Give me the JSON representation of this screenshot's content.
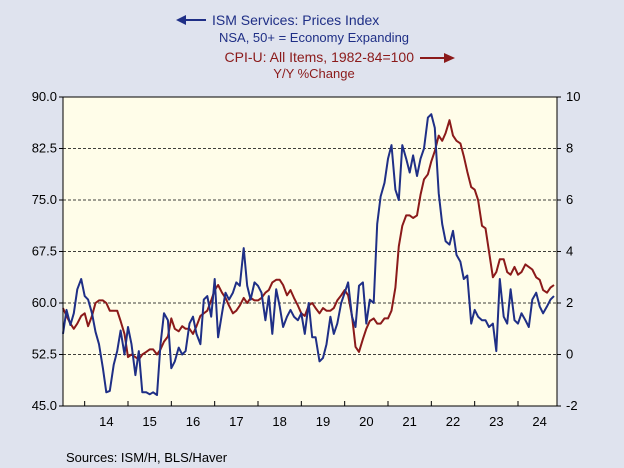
{
  "chart_data": {
    "type": "line",
    "source": "Sources:  ISM/H, BLS/Haver",
    "grid": true,
    "x_ticks": [
      "14",
      "15",
      "16",
      "17",
      "18",
      "19",
      "20",
      "21",
      "22",
      "23",
      "24"
    ],
    "x_range": [
      2013.5,
      2024.9
    ],
    "left_axis": {
      "range": [
        45.0,
        90.0
      ],
      "ticks": [
        90.0,
        82.5,
        75.0,
        67.5,
        60.0,
        52.5,
        45.0
      ],
      "tick_labels": [
        "90.0",
        "82.5",
        "75.0",
        "67.5",
        "60.0",
        "52.5",
        "45.0"
      ]
    },
    "right_axis": {
      "range": [
        -2,
        10
      ],
      "ticks": [
        10,
        8,
        6,
        4,
        2,
        0,
        -2
      ],
      "tick_labels": [
        "10",
        "8",
        "6",
        "4",
        "2",
        "0",
        "-2"
      ]
    },
    "series": [
      {
        "name": "ISM Services: Prices Index",
        "subtitle": "NSA, 50+ = Economy Expanding",
        "axis": "left",
        "color": "#1f2f86",
        "legend_arrow": "left",
        "x": [
          2013.5,
          2013.58,
          2013.67,
          2013.75,
          2013.83,
          2013.92,
          2014.0,
          2014.08,
          2014.17,
          2014.25,
          2014.33,
          2014.42,
          2014.5,
          2014.58,
          2014.67,
          2014.75,
          2014.83,
          2014.92,
          2015.0,
          2015.08,
          2015.17,
          2015.25,
          2015.33,
          2015.42,
          2015.5,
          2015.58,
          2015.67,
          2015.75,
          2015.83,
          2015.92,
          2016.0,
          2016.08,
          2016.17,
          2016.25,
          2016.33,
          2016.42,
          2016.5,
          2016.58,
          2016.67,
          2016.75,
          2016.83,
          2016.92,
          2017.0,
          2017.08,
          2017.17,
          2017.25,
          2017.33,
          2017.42,
          2017.5,
          2017.58,
          2017.67,
          2017.75,
          2017.83,
          2017.92,
          2018.0,
          2018.08,
          2018.17,
          2018.25,
          2018.33,
          2018.42,
          2018.5,
          2018.58,
          2018.67,
          2018.75,
          2018.83,
          2018.92,
          2019.0,
          2019.08,
          2019.17,
          2019.25,
          2019.33,
          2019.42,
          2019.5,
          2019.58,
          2019.67,
          2019.75,
          2019.83,
          2019.92,
          2020.0,
          2020.08,
          2020.17,
          2020.25,
          2020.33,
          2020.42,
          2020.5,
          2020.58,
          2020.67,
          2020.75,
          2020.83,
          2020.92,
          2021.0,
          2021.08,
          2021.17,
          2021.25,
          2021.33,
          2021.42,
          2021.5,
          2021.58,
          2021.67,
          2021.75,
          2021.83,
          2021.92,
          2022.0,
          2022.08,
          2022.17,
          2022.25,
          2022.33,
          2022.42,
          2022.5,
          2022.58,
          2022.67,
          2022.75,
          2022.83,
          2022.92,
          2023.0,
          2023.08,
          2023.17,
          2023.25,
          2023.33,
          2023.42,
          2023.5,
          2023.58,
          2023.67,
          2023.75,
          2023.83,
          2023.92,
          2024.0,
          2024.08,
          2024.17,
          2024.25,
          2024.33,
          2024.42,
          2024.5,
          2024.58,
          2024.67,
          2024.75,
          2024.83
        ],
        "values": [
          55.5,
          59.0,
          56.8,
          58.5,
          62.0,
          63.5,
          61.0,
          60.5,
          58.5,
          55.8,
          54.0,
          50.5,
          47.0,
          47.2,
          51.0,
          53.0,
          56.0,
          52.5,
          56.5,
          54.0,
          49.5,
          53.0,
          47.0,
          47.0,
          46.7,
          47.0,
          46.6,
          54.0,
          58.5,
          57.5,
          50.5,
          51.5,
          53.5,
          52.5,
          53.0,
          57.0,
          58.0,
          55.5,
          54.0,
          60.5,
          61.0,
          58.0,
          63.5,
          55.0,
          58.5,
          61.5,
          60.5,
          61.5,
          63.0,
          62.5,
          68.0,
          62.5,
          60.5,
          63.0,
          62.5,
          61.5,
          57.5,
          61.0,
          55.5,
          62.0,
          59.5,
          56.5,
          58.0,
          59.0,
          58.0,
          57.5,
          58.5,
          55.5,
          60.0,
          55.0,
          55.0,
          51.5,
          52.0,
          54.0,
          58.0,
          55.5,
          57.0,
          60.0,
          61.5,
          63.0,
          58.0,
          56.5,
          62.5,
          63.0,
          57.0,
          60.5,
          60.0,
          71.5,
          75.5,
          77.5,
          81.0,
          83.0,
          76.5,
          75.0,
          83.0,
          81.0,
          79.0,
          81.5,
          78.5,
          81.0,
          82.5,
          87.0,
          87.5,
          85.5,
          76.0,
          71.5,
          69.0,
          68.5,
          70.5,
          67.0,
          66.0,
          63.5,
          64.0,
          57.0,
          59.0,
          58.0,
          57.5,
          57.5,
          56.5,
          57.0,
          53.0,
          63.5,
          58.0,
          57.0,
          62.0,
          57.5,
          57.0,
          58.5,
          57.5,
          56.5,
          60.5,
          61.5,
          59.5,
          58.5,
          59.5,
          60.5,
          61.0
        ],
        "note": "monthly estimates read from chart"
      },
      {
        "name": "CPI-U: All Items, 1982-84=100",
        "subtitle": "Y/Y %Change",
        "axis": "right",
        "color": "#8b1a1a",
        "legend_arrow": "right",
        "x": [
          2013.5,
          2013.58,
          2013.67,
          2013.75,
          2013.83,
          2013.92,
          2014.0,
          2014.08,
          2014.17,
          2014.25,
          2014.33,
          2014.42,
          2014.5,
          2014.58,
          2014.67,
          2014.75,
          2014.83,
          2014.92,
          2015.0,
          2015.08,
          2015.17,
          2015.25,
          2015.33,
          2015.42,
          2015.5,
          2015.58,
          2015.67,
          2015.75,
          2015.83,
          2015.92,
          2016.0,
          2016.08,
          2016.17,
          2016.25,
          2016.33,
          2016.42,
          2016.5,
          2016.58,
          2016.67,
          2016.75,
          2016.83,
          2016.92,
          2017.0,
          2017.08,
          2017.17,
          2017.25,
          2017.33,
          2017.42,
          2017.5,
          2017.58,
          2017.67,
          2017.75,
          2017.83,
          2017.92,
          2018.0,
          2018.08,
          2018.17,
          2018.25,
          2018.33,
          2018.42,
          2018.5,
          2018.58,
          2018.67,
          2018.75,
          2018.83,
          2018.92,
          2019.0,
          2019.08,
          2019.17,
          2019.25,
          2019.33,
          2019.42,
          2019.5,
          2019.58,
          2019.67,
          2019.75,
          2019.83,
          2019.92,
          2020.0,
          2020.08,
          2020.17,
          2020.25,
          2020.33,
          2020.42,
          2020.5,
          2020.58,
          2020.67,
          2020.75,
          2020.83,
          2020.92,
          2021.0,
          2021.08,
          2021.17,
          2021.25,
          2021.33,
          2021.42,
          2021.5,
          2021.58,
          2021.67,
          2021.75,
          2021.83,
          2021.92,
          2022.0,
          2022.08,
          2022.17,
          2022.25,
          2022.33,
          2022.42,
          2022.5,
          2022.58,
          2022.67,
          2022.75,
          2022.83,
          2022.92,
          2023.0,
          2023.08,
          2023.17,
          2023.25,
          2023.33,
          2023.42,
          2023.5,
          2023.58,
          2023.67,
          2023.75,
          2023.83,
          2023.92,
          2024.0,
          2024.08,
          2024.17,
          2024.25,
          2024.33,
          2024.42,
          2024.5,
          2024.58,
          2024.67,
          2024.75,
          2024.83
        ],
        "values": [
          1.8,
          1.5,
          1.2,
          1.0,
          1.2,
          1.5,
          1.6,
          1.1,
          1.5,
          2.0,
          2.1,
          2.1,
          2.0,
          1.7,
          1.7,
          1.7,
          1.3,
          0.8,
          -0.1,
          0.0,
          -0.1,
          -0.2,
          0.0,
          0.1,
          0.2,
          0.2,
          0.0,
          0.2,
          0.5,
          0.7,
          1.4,
          1.0,
          0.9,
          1.1,
          1.0,
          1.0,
          0.8,
          1.1,
          1.5,
          1.6,
          1.7,
          2.1,
          2.5,
          2.7,
          2.4,
          2.2,
          1.9,
          1.6,
          1.7,
          1.9,
          2.2,
          2.0,
          2.2,
          2.1,
          2.1,
          2.2,
          2.4,
          2.5,
          2.8,
          2.9,
          2.9,
          2.7,
          2.3,
          2.5,
          2.2,
          1.9,
          1.6,
          1.5,
          1.9,
          2.0,
          1.8,
          1.6,
          1.8,
          1.7,
          1.7,
          1.8,
          2.1,
          2.3,
          2.5,
          2.3,
          1.5,
          0.3,
          0.1,
          0.6,
          1.0,
          1.3,
          1.4,
          1.2,
          1.2,
          1.4,
          1.4,
          1.7,
          2.6,
          4.2,
          5.0,
          5.4,
          5.4,
          5.3,
          5.4,
          6.2,
          6.8,
          7.0,
          7.5,
          7.9,
          8.5,
          8.3,
          8.6,
          9.1,
          8.5,
          8.3,
          8.2,
          7.7,
          7.1,
          6.5,
          6.4,
          6.0,
          5.0,
          4.9,
          4.0,
          3.0,
          3.2,
          3.7,
          3.7,
          3.2,
          3.1,
          3.4,
          3.1,
          3.2,
          3.5,
          3.4,
          3.3,
          3.0,
          2.9,
          2.5,
          2.4,
          2.6,
          2.7
        ],
        "note": "monthly estimates read from chart"
      }
    ]
  }
}
